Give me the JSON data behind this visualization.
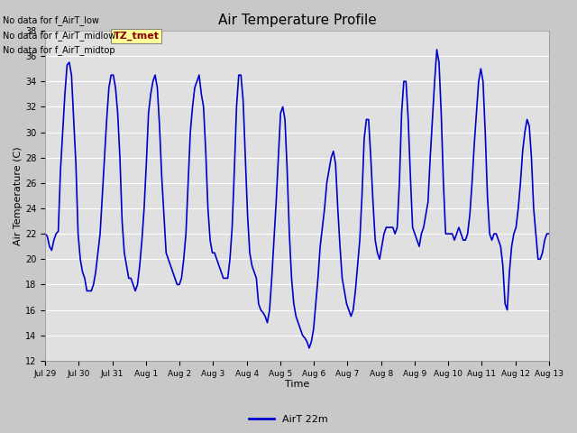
{
  "title": "Air Temperature Profile",
  "xlabel": "Time",
  "ylabel": "Air Temperature (C)",
  "ylim": [
    12,
    38
  ],
  "yticks": [
    12,
    14,
    16,
    18,
    20,
    22,
    24,
    26,
    28,
    30,
    32,
    34,
    36,
    38
  ],
  "line_color": "#0000CC",
  "line_width": 1.2,
  "fig_facecolor": "#C8C8C8",
  "ax_facecolor": "#E0E0E0",
  "legend_label": "AirT 22m",
  "no_data_texts": [
    "No data for f_AirT_low",
    "No data for f_AirT_midlow",
    "No data for f_AirT_midtop"
  ],
  "tz_label": "TZ_tmet",
  "x_tick_labels": [
    "Jul 29",
    "Jul 30",
    "Jul 31",
    "Aug 1",
    "Aug 2",
    "Aug 3",
    "Aug 4",
    "Aug 5",
    "Aug 6",
    "Aug 7",
    "Aug 8",
    "Aug 9",
    "Aug 10",
    "Aug 11",
    "Aug 12",
    "Aug 13"
  ],
  "temperature_values": [
    22.0,
    21.8,
    21.0,
    20.7,
    21.5,
    22.0,
    22.2,
    27.0,
    30.0,
    33.0,
    35.3,
    35.5,
    34.5,
    31.0,
    27.5,
    22.0,
    20.0,
    19.0,
    18.5,
    17.5,
    17.5,
    17.5,
    18.0,
    19.0,
    20.5,
    22.0,
    25.0,
    28.0,
    31.0,
    33.5,
    34.5,
    34.5,
    33.5,
    31.5,
    28.0,
    23.0,
    20.5,
    19.5,
    18.5,
    18.5,
    18.0,
    17.5,
    18.0,
    19.5,
    21.5,
    24.0,
    27.5,
    31.5,
    33.0,
    34.0,
    34.5,
    33.5,
    30.5,
    26.5,
    23.5,
    20.5,
    20.0,
    19.5,
    19.0,
    18.5,
    18.0,
    18.0,
    18.5,
    20.0,
    22.0,
    26.0,
    30.0,
    32.0,
    33.5,
    34.0,
    34.5,
    33.0,
    32.0,
    28.5,
    24.0,
    21.5,
    20.5,
    20.5,
    20.0,
    19.5,
    19.0,
    18.5,
    18.5,
    18.5,
    20.0,
    22.5,
    27.0,
    32.0,
    34.5,
    34.5,
    32.5,
    28.0,
    23.5,
    20.5,
    19.5,
    19.0,
    18.5,
    16.5,
    16.0,
    15.8,
    15.5,
    15.0,
    16.0,
    18.5,
    21.5,
    24.5,
    28.0,
    31.5,
    32.0,
    31.0,
    27.0,
    22.0,
    18.5,
    16.5,
    15.5,
    15.0,
    14.5,
    14.0,
    13.8,
    13.5,
    13.0,
    13.5,
    14.5,
    16.5,
    18.5,
    21.0,
    22.5,
    24.0,
    26.0,
    27.0,
    28.0,
    28.5,
    27.5,
    24.0,
    21.0,
    18.5,
    17.5,
    16.5,
    16.0,
    15.5,
    16.0,
    17.5,
    19.5,
    21.5,
    25.0,
    29.5,
    31.0,
    31.0,
    28.0,
    24.5,
    21.5,
    20.5,
    20.0,
    21.0,
    22.0,
    22.5,
    22.5,
    22.5,
    22.5,
    22.0,
    22.5,
    26.0,
    31.5,
    34.0,
    34.0,
    31.0,
    26.5,
    22.5,
    22.0,
    21.5,
    21.0,
    22.0,
    22.5,
    23.5,
    24.5,
    28.0,
    31.0,
    34.0,
    36.5,
    35.5,
    31.5,
    26.0,
    22.0,
    22.0,
    22.0,
    22.0,
    21.5,
    22.0,
    22.5,
    22.0,
    21.5,
    21.5,
    22.0,
    23.5,
    26.0,
    29.0,
    31.5,
    34.0,
    35.0,
    34.0,
    30.0,
    25.0,
    22.0,
    21.5,
    22.0,
    22.0,
    21.5,
    21.0,
    19.5,
    16.5,
    16.0,
    19.0,
    21.0,
    22.0,
    22.5,
    24.0,
    26.0,
    28.5,
    30.0,
    31.0,
    30.5,
    28.0,
    24.0,
    22.0,
    20.0,
    20.0,
    20.5,
    21.5,
    22.0,
    22.0
  ]
}
